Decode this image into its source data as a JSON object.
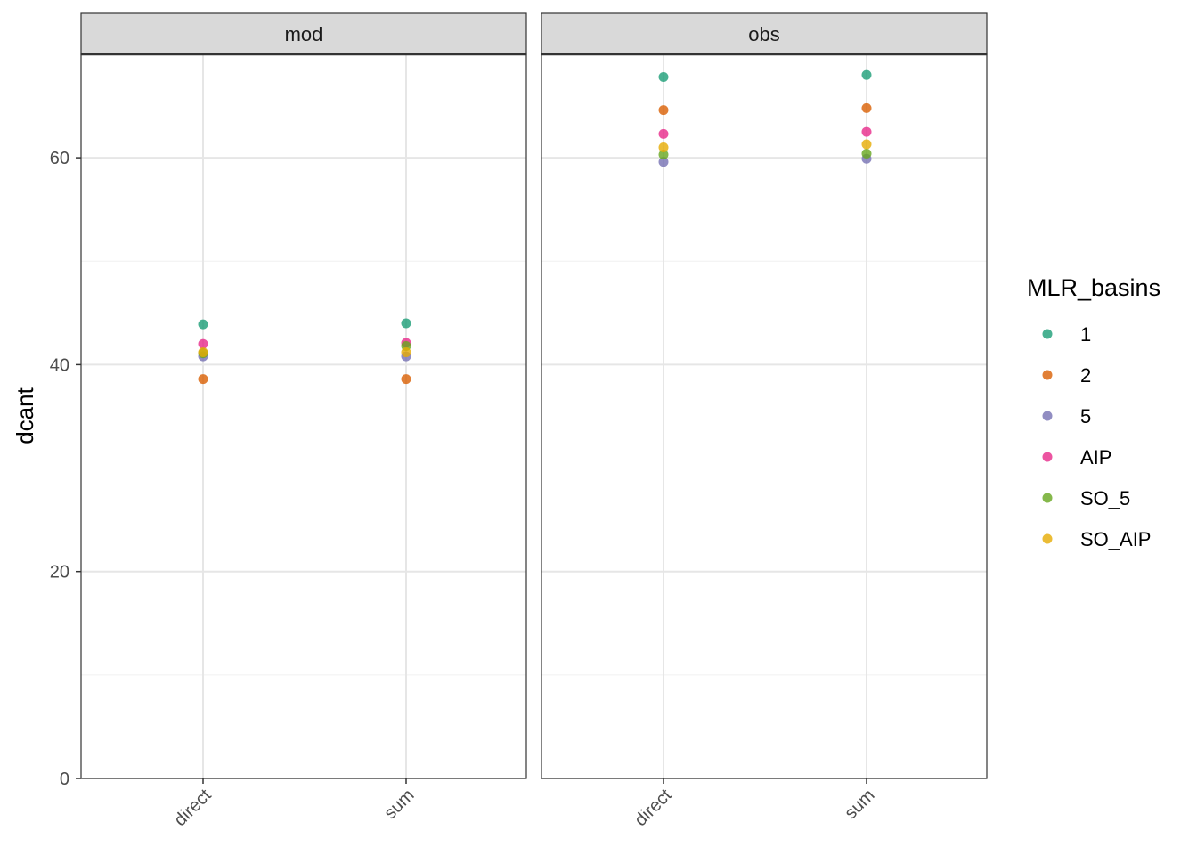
{
  "chart_data": {
    "type": "scatter",
    "facet_variable": "",
    "facets": [
      "mod",
      "obs"
    ],
    "categories": [
      "direct",
      "sum"
    ],
    "xlabel": "",
    "ylabel": "dcant",
    "ylim": [
      0,
      70
    ],
    "y_ticks": [
      0,
      20,
      40,
      60
    ],
    "grid": true,
    "legend": {
      "title": "MLR_basins",
      "position": "right",
      "entries": [
        "1",
        "2",
        "5",
        "AIP",
        "SO_5",
        "SO_AIP"
      ]
    },
    "colors": {
      "1": "#1B9E77",
      "2": "#D95F02",
      "5": "#7570B3",
      "AIP": "#E7298A",
      "SO_5": "#66A61E",
      "SO_AIP": "#E6AB02"
    },
    "series": [
      {
        "name": "1",
        "values": {
          "mod": [
            43.9,
            44.0
          ],
          "obs": [
            67.8,
            68.0
          ]
        }
      },
      {
        "name": "2",
        "values": {
          "mod": [
            38.6,
            38.6
          ],
          "obs": [
            64.6,
            64.8
          ]
        }
      },
      {
        "name": "5",
        "values": {
          "mod": [
            40.8,
            40.8
          ],
          "obs": [
            59.6,
            59.9
          ]
        }
      },
      {
        "name": "AIP",
        "values": {
          "mod": [
            42.0,
            42.1
          ],
          "obs": [
            62.3,
            62.5
          ]
        }
      },
      {
        "name": "SO_5",
        "values": {
          "mod": [
            41.1,
            41.8
          ],
          "obs": [
            60.3,
            60.4
          ]
        }
      },
      {
        "name": "SO_AIP",
        "values": {
          "mod": [
            41.2,
            41.2
          ],
          "obs": [
            61.0,
            61.3
          ]
        }
      }
    ]
  }
}
